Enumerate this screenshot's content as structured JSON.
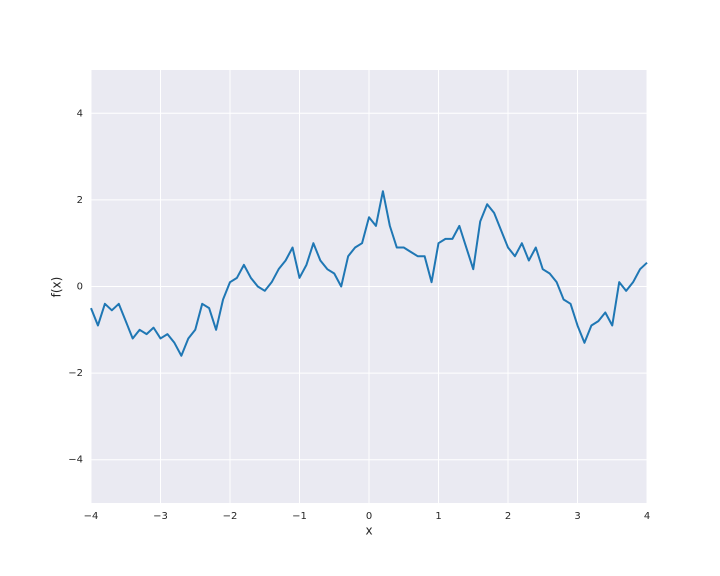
{
  "chart_data": {
    "type": "line",
    "xlabel": "x",
    "ylabel": "f(x)",
    "x": [
      -4.0,
      -3.9,
      -3.8,
      -3.7,
      -3.6,
      -3.5,
      -3.4,
      -3.3,
      -3.2,
      -3.1,
      -3.0,
      -2.9,
      -2.8,
      -2.7,
      -2.6,
      -2.5,
      -2.4,
      -2.3,
      -2.2,
      -2.1,
      -2.0,
      -1.9,
      -1.8,
      -1.7,
      -1.6,
      -1.5,
      -1.4,
      -1.3,
      -1.2,
      -1.1,
      -1.0,
      -0.9,
      -0.8,
      -0.7,
      -0.6,
      -0.5,
      -0.4,
      -0.3,
      -0.2,
      -0.1,
      0.0,
      0.1,
      0.2,
      0.3,
      0.4,
      0.5,
      0.6,
      0.7,
      0.8,
      0.9,
      1.0,
      1.1,
      1.2,
      1.3,
      1.4,
      1.5,
      1.6,
      1.7,
      1.8,
      1.9,
      2.0,
      2.1,
      2.2,
      2.3,
      2.4,
      2.5,
      2.6,
      2.7,
      2.8,
      2.9,
      3.0,
      3.1,
      3.2,
      3.3,
      3.4,
      3.5,
      3.6,
      3.7,
      3.8,
      3.9,
      4.0
    ],
    "series": [
      {
        "color": "#1f77b4",
        "values": [
          -0.5,
          -0.9,
          -0.4,
          -0.55,
          -0.4,
          -0.8,
          -1.2,
          -1.0,
          -1.1,
          -0.95,
          -1.2,
          -1.1,
          -1.3,
          -1.6,
          -1.2,
          -1.0,
          -0.4,
          -0.5,
          -1.0,
          -0.3,
          0.1,
          0.2,
          0.5,
          0.2,
          0.0,
          -0.1,
          0.1,
          0.4,
          0.6,
          0.9,
          0.2,
          0.5,
          1.0,
          0.6,
          0.4,
          0.3,
          0.0,
          0.7,
          0.9,
          1.0,
          1.6,
          1.4,
          2.2,
          1.4,
          0.9,
          0.9,
          0.8,
          0.7,
          0.7,
          0.1,
          1.0,
          1.1,
          1.1,
          1.4,
          0.9,
          0.4,
          1.5,
          1.9,
          1.7,
          1.3,
          0.9,
          0.7,
          1.0,
          0.6,
          0.9,
          0.4,
          0.3,
          0.1,
          -0.3,
          -0.4,
          -0.9,
          -1.3,
          -0.9,
          -0.8,
          -0.6,
          -0.9,
          0.1,
          -0.1,
          0.1,
          0.4,
          0.55
        ]
      }
    ],
    "xlim": [
      -4,
      4
    ],
    "xticks": [
      {
        "value": -4,
        "label": "−4"
      },
      {
        "value": -3,
        "label": "−3"
      },
      {
        "value": -2,
        "label": "−2"
      },
      {
        "value": -1,
        "label": "−1"
      },
      0,
      1,
      2,
      3,
      4
    ],
    "ylim": [
      -5,
      5
    ],
    "yticks": [
      {
        "value": -4,
        "label": "−4"
      },
      {
        "value": -2,
        "label": "−2"
      },
      0,
      2,
      4
    ],
    "grid": true
  }
}
